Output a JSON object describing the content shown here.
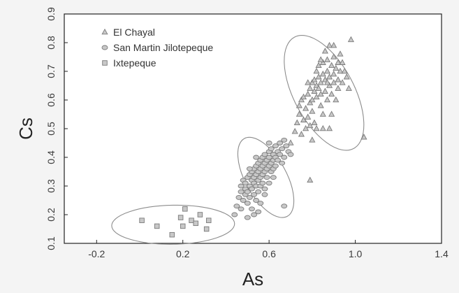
{
  "chart_data": {
    "type": "scatter",
    "xlabel": "As",
    "ylabel": "Cs",
    "xlim": [
      -0.35,
      1.4
    ],
    "ylim": [
      0.1,
      0.9
    ],
    "x_ticks": [
      -0.2,
      0.2,
      0.6,
      1.0,
      1.4
    ],
    "x_tick_labels": [
      "-0.2",
      "0.2",
      "0.6",
      "1.0",
      "1.4"
    ],
    "y_ticks": [
      0.1,
      0.2,
      0.3,
      0.4,
      0.5,
      0.6,
      0.7,
      0.8,
      0.9
    ],
    "y_tick_labels": [
      "0.1",
      "0.2",
      "0.3",
      "0.4",
      "0.5",
      "0.6",
      "0.7",
      "0.8",
      "0.9"
    ],
    "grid": false,
    "legend_position": "top-left",
    "colors": {
      "marker_fill": "#c8c8c8",
      "marker_stroke": "#7a7a7a",
      "ellipse": "#8c8c8c",
      "plot_background": "#ffffff",
      "page_background": "#f4f4f4"
    },
    "series": [
      {
        "name": "El Chayal",
        "marker": "triangle",
        "points": [
          [
            0.7,
            0.45
          ],
          [
            0.72,
            0.49
          ],
          [
            0.73,
            0.52
          ],
          [
            0.74,
            0.55
          ],
          [
            0.74,
            0.58
          ],
          [
            0.75,
            0.6
          ],
          [
            0.75,
            0.48
          ],
          [
            0.76,
            0.61
          ],
          [
            0.77,
            0.57
          ],
          [
            0.77,
            0.5
          ],
          [
            0.78,
            0.54
          ],
          [
            0.78,
            0.62
          ],
          [
            0.79,
            0.64
          ],
          [
            0.79,
            0.59
          ],
          [
            0.79,
            0.51
          ],
          [
            0.8,
            0.66
          ],
          [
            0.8,
            0.6
          ],
          [
            0.8,
            0.56
          ],
          [
            0.81,
            0.67
          ],
          [
            0.81,
            0.63
          ],
          [
            0.81,
            0.52
          ],
          [
            0.82,
            0.7
          ],
          [
            0.82,
            0.65
          ],
          [
            0.82,
            0.61
          ],
          [
            0.82,
            0.5
          ],
          [
            0.83,
            0.72
          ],
          [
            0.83,
            0.68
          ],
          [
            0.83,
            0.64
          ],
          [
            0.84,
            0.66
          ],
          [
            0.84,
            0.62
          ],
          [
            0.84,
            0.58
          ],
          [
            0.85,
            0.69
          ],
          [
            0.85,
            0.73
          ],
          [
            0.85,
            0.55
          ],
          [
            0.85,
            0.5
          ],
          [
            0.86,
            0.67
          ],
          [
            0.86,
            0.63
          ],
          [
            0.86,
            0.77
          ],
          [
            0.87,
            0.7
          ],
          [
            0.87,
            0.74
          ],
          [
            0.87,
            0.6
          ],
          [
            0.88,
            0.79
          ],
          [
            0.88,
            0.65
          ],
          [
            0.88,
            0.68
          ],
          [
            0.89,
            0.72
          ],
          [
            0.89,
            0.62
          ],
          [
            0.89,
            0.55
          ],
          [
            0.9,
            0.75
          ],
          [
            0.9,
            0.69
          ],
          [
            0.9,
            0.66
          ],
          [
            0.91,
            0.71
          ],
          [
            0.91,
            0.6
          ],
          [
            0.92,
            0.73
          ],
          [
            0.92,
            0.67
          ],
          [
            0.92,
            0.64
          ],
          [
            0.93,
            0.76
          ],
          [
            0.93,
            0.7
          ],
          [
            0.94,
            0.66
          ],
          [
            0.94,
            0.73
          ],
          [
            0.95,
            0.7
          ],
          [
            0.96,
            0.68
          ],
          [
            0.97,
            0.64
          ],
          [
            0.88,
            0.5
          ],
          [
            0.8,
            0.46
          ],
          [
            0.79,
            0.32
          ],
          [
            0.9,
            0.79
          ],
          [
            0.98,
            0.81
          ],
          [
            1.04,
            0.47
          ],
          [
            0.84,
            0.74
          ],
          [
            0.87,
            0.66
          ],
          [
            0.78,
            0.66
          ],
          [
            0.76,
            0.53
          ]
        ]
      },
      {
        "name": "San Martin Jilotepeque",
        "marker": "circle",
        "points": [
          [
            0.44,
            0.2
          ],
          [
            0.45,
            0.23
          ],
          [
            0.46,
            0.26
          ],
          [
            0.47,
            0.28
          ],
          [
            0.47,
            0.3
          ],
          [
            0.48,
            0.25
          ],
          [
            0.48,
            0.32
          ],
          [
            0.49,
            0.27
          ],
          [
            0.49,
            0.29
          ],
          [
            0.49,
            0.31
          ],
          [
            0.5,
            0.33
          ],
          [
            0.5,
            0.28
          ],
          [
            0.5,
            0.24
          ],
          [
            0.51,
            0.3
          ],
          [
            0.51,
            0.34
          ],
          [
            0.51,
            0.26
          ],
          [
            0.52,
            0.32
          ],
          [
            0.52,
            0.35
          ],
          [
            0.52,
            0.29
          ],
          [
            0.52,
            0.22
          ],
          [
            0.53,
            0.31
          ],
          [
            0.53,
            0.36
          ],
          [
            0.53,
            0.33
          ],
          [
            0.53,
            0.27
          ],
          [
            0.54,
            0.34
          ],
          [
            0.54,
            0.37
          ],
          [
            0.54,
            0.3
          ],
          [
            0.54,
            0.25
          ],
          [
            0.55,
            0.32
          ],
          [
            0.55,
            0.35
          ],
          [
            0.55,
            0.38
          ],
          [
            0.55,
            0.28
          ],
          [
            0.56,
            0.36
          ],
          [
            0.56,
            0.33
          ],
          [
            0.56,
            0.39
          ],
          [
            0.56,
            0.3
          ],
          [
            0.56,
            0.24
          ],
          [
            0.57,
            0.37
          ],
          [
            0.57,
            0.34
          ],
          [
            0.57,
            0.4
          ],
          [
            0.57,
            0.31
          ],
          [
            0.58,
            0.35
          ],
          [
            0.58,
            0.38
          ],
          [
            0.58,
            0.41
          ],
          [
            0.58,
            0.29
          ],
          [
            0.59,
            0.36
          ],
          [
            0.59,
            0.39
          ],
          [
            0.59,
            0.33
          ],
          [
            0.6,
            0.37
          ],
          [
            0.6,
            0.4
          ],
          [
            0.6,
            0.42
          ],
          [
            0.6,
            0.31
          ],
          [
            0.61,
            0.38
          ],
          [
            0.61,
            0.35
          ],
          [
            0.61,
            0.43
          ],
          [
            0.62,
            0.39
          ],
          [
            0.62,
            0.41
          ],
          [
            0.62,
            0.36
          ],
          [
            0.63,
            0.4
          ],
          [
            0.63,
            0.44
          ],
          [
            0.63,
            0.37
          ],
          [
            0.64,
            0.42
          ],
          [
            0.64,
            0.39
          ],
          [
            0.65,
            0.45
          ],
          [
            0.65,
            0.41
          ],
          [
            0.66,
            0.43
          ],
          [
            0.66,
            0.38
          ],
          [
            0.67,
            0.46
          ],
          [
            0.67,
            0.4
          ],
          [
            0.68,
            0.44
          ],
          [
            0.69,
            0.42
          ],
          [
            0.7,
            0.41
          ],
          [
            0.5,
            0.19
          ],
          [
            0.53,
            0.2
          ],
          [
            0.55,
            0.21
          ],
          [
            0.67,
            0.23
          ],
          [
            0.47,
            0.22
          ],
          [
            0.58,
            0.27
          ],
          [
            0.62,
            0.33
          ],
          [
            0.51,
            0.36
          ],
          [
            0.6,
            0.45
          ],
          [
            0.54,
            0.4
          ]
        ]
      },
      {
        "name": "Ixtepeque",
        "marker": "square",
        "points": [
          [
            0.01,
            0.18
          ],
          [
            0.08,
            0.16
          ],
          [
            0.15,
            0.13
          ],
          [
            0.19,
            0.19
          ],
          [
            0.2,
            0.16
          ],
          [
            0.21,
            0.22
          ],
          [
            0.24,
            0.18
          ],
          [
            0.26,
            0.17
          ],
          [
            0.28,
            0.2
          ],
          [
            0.31,
            0.15
          ],
          [
            0.32,
            0.18
          ]
        ]
      }
    ],
    "ellipses": [
      {
        "group": "El Chayal",
        "cx": 0.855,
        "cy": 0.625,
        "rx": 0.14,
        "ry": 0.22,
        "angle_deg": -28
      },
      {
        "group": "San Martin Jilotepeque",
        "cx": 0.585,
        "cy": 0.33,
        "rx": 0.095,
        "ry": 0.155,
        "angle_deg": -29
      },
      {
        "group": "Ixtepeque",
        "cx": 0.155,
        "cy": 0.165,
        "rx": 0.285,
        "ry": 0.068,
        "angle_deg": -1
      }
    ]
  }
}
